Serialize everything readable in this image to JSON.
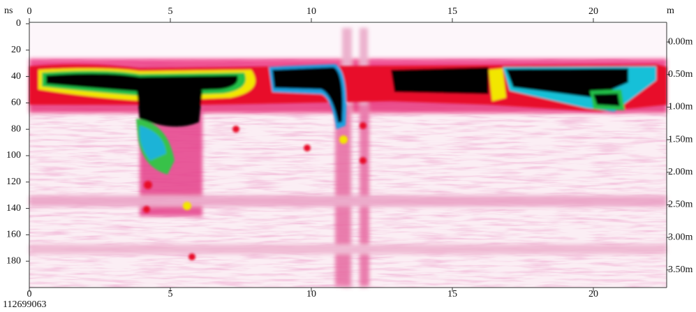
{
  "chart_data": {
    "type": "radargram",
    "x_label": "m",
    "y_label": "ns",
    "caption": "112699063",
    "xlim": [
      0,
      22.6
    ],
    "xticks": [
      0,
      5,
      10,
      15,
      20
    ],
    "ylim": [
      0,
      200
    ],
    "yticks": [
      0,
      20,
      40,
      60,
      80,
      100,
      120,
      140,
      160,
      180
    ],
    "y2lim": [
      -0.28,
      3.77
    ],
    "y2ticks": [
      {
        "value": 0,
        "label": "0.00m"
      },
      {
        "value": 0.5,
        "label": "0.50m"
      },
      {
        "value": 1,
        "label": "1.00m"
      },
      {
        "value": 1.5,
        "label": "1.50m"
      },
      {
        "value": 2,
        "label": "2.00m"
      },
      {
        "value": 2.5,
        "label": "2.50m"
      },
      {
        "value": 3,
        "label": "3.00m"
      },
      {
        "value": 3.5,
        "label": "3.50m"
      }
    ]
  }
}
